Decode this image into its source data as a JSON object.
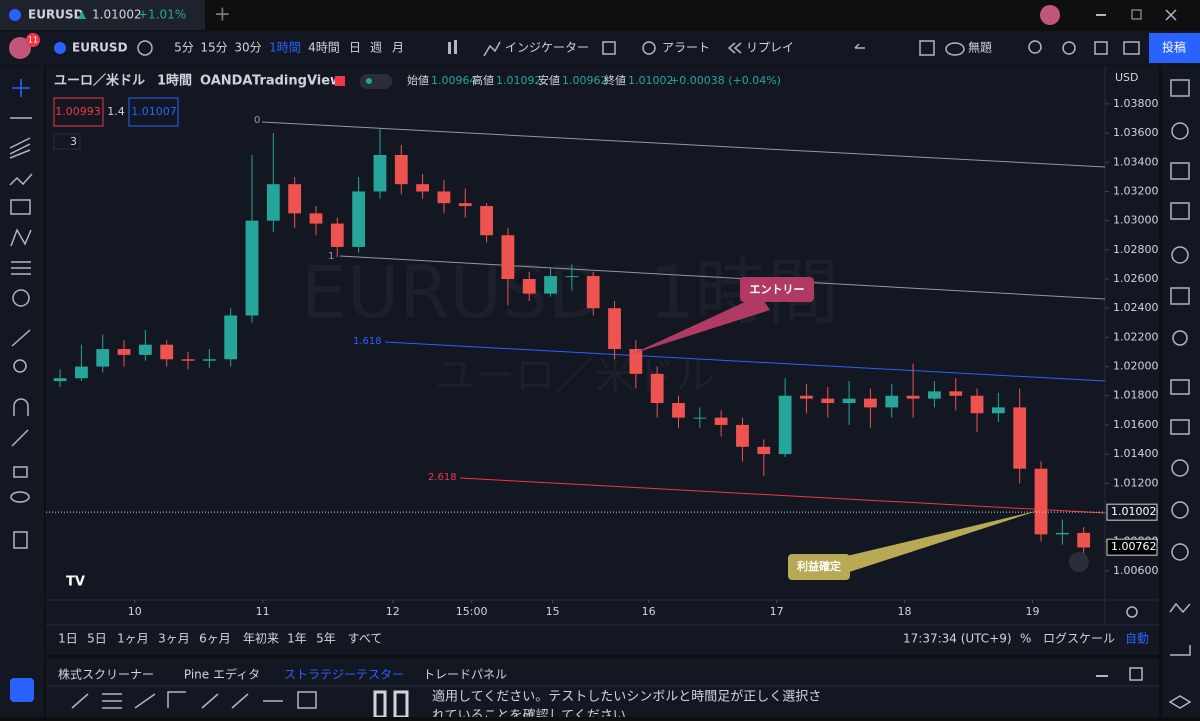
{
  "browser_tab": {
    "symbol": "EURUSD",
    "price": "1.01002",
    "change": "+1.01%"
  },
  "toolbar": {
    "avatar_badge": "11",
    "symbol": "EURUSD",
    "intervals": [
      "5分",
      "15分",
      "30分",
      "1時間",
      "4時間",
      "日",
      "週",
      "月"
    ],
    "indicators": "インジケーター",
    "alert": "アラート",
    "replay": "リプレイ",
    "layout": "無題",
    "publish": "投稿"
  },
  "legend": {
    "title": "ユーロ／米ドル",
    "interval": "1時間",
    "exchange": "OANDA",
    "source": "TradingView",
    "open_label": "始値",
    "open": "1.00964",
    "high_label": "高値",
    "high": "1.01092",
    "low_label": "安値",
    "low": "1.00962",
    "close_label": "終値",
    "close": "1.01002",
    "change": "+0.00038 (+0.04%)",
    "bid": "1.00993",
    "spread": "1.4",
    "ask": "1.01007",
    "indicators_count": "3"
  },
  "watermark": {
    "symbol": "EURUSD, 1時間",
    "name": "ユーロ／米ドル"
  },
  "annotations": {
    "entry": "エントリー",
    "take_profit": "利益確定",
    "fib_levels": [
      "0",
      "1",
      "1.618",
      "2.618"
    ]
  },
  "chart_data": {
    "type": "candlestick",
    "currency": "USD",
    "up_color": "#26a69a",
    "down_color": "#ef5350",
    "ohlc": [
      [
        1.019,
        1.0198,
        1.0186,
        1.0192
      ],
      [
        1.0192,
        1.0215,
        1.019,
        1.02
      ],
      [
        1.02,
        1.0222,
        1.0196,
        1.0212
      ],
      [
        1.0212,
        1.0218,
        1.02,
        1.0208
      ],
      [
        1.0208,
        1.0225,
        1.0204,
        1.0215
      ],
      [
        1.0215,
        1.0218,
        1.02,
        1.0205
      ],
      [
        1.0205,
        1.021,
        1.0198,
        1.0204
      ],
      [
        1.0204,
        1.0212,
        1.0199,
        1.0205
      ],
      [
        1.0205,
        1.024,
        1.02,
        1.0235
      ],
      [
        1.0235,
        1.0345,
        1.023,
        1.03
      ],
      [
        1.03,
        1.036,
        1.0292,
        1.0325
      ],
      [
        1.0325,
        1.033,
        1.0295,
        1.0305
      ],
      [
        1.0305,
        1.031,
        1.029,
        1.0298
      ],
      [
        1.0298,
        1.0302,
        1.0275,
        1.0282
      ],
      [
        1.0282,
        1.033,
        1.0278,
        1.032
      ],
      [
        1.032,
        1.0363,
        1.0315,
        1.0345
      ],
      [
        1.0345,
        1.0352,
        1.0318,
        1.0325
      ],
      [
        1.0325,
        1.0332,
        1.0315,
        1.032
      ],
      [
        1.032,
        1.0328,
        1.0305,
        1.0312
      ],
      [
        1.0312,
        1.0322,
        1.0302,
        1.031
      ],
      [
        1.031,
        1.0312,
        1.0285,
        1.029
      ],
      [
        1.029,
        1.0295,
        1.0242,
        1.026
      ],
      [
        1.026,
        1.0265,
        1.0245,
        1.025
      ],
      [
        1.025,
        1.0268,
        1.0248,
        1.0262
      ],
      [
        1.0262,
        1.027,
        1.0252,
        1.0262
      ],
      [
        1.0262,
        1.0265,
        1.0235,
        1.024
      ],
      [
        1.024,
        1.0245,
        1.0205,
        1.0212
      ],
      [
        1.0212,
        1.0218,
        1.0185,
        1.0195
      ],
      [
        1.0195,
        1.02,
        1.0165,
        1.0175
      ],
      [
        1.0175,
        1.018,
        1.0158,
        1.0165
      ],
      [
        1.0165,
        1.0172,
        1.0158,
        1.0165
      ],
      [
        1.0165,
        1.017,
        1.0152,
        1.016
      ],
      [
        1.016,
        1.0165,
        1.0135,
        1.0145
      ],
      [
        1.0145,
        1.015,
        1.0125,
        1.014
      ],
      [
        1.014,
        1.0192,
        1.0138,
        1.018
      ],
      [
        1.018,
        1.0188,
        1.0168,
        1.0178
      ],
      [
        1.0178,
        1.0186,
        1.0165,
        1.0175
      ],
      [
        1.0175,
        1.019,
        1.016,
        1.0178
      ],
      [
        1.0178,
        1.0185,
        1.0158,
        1.0172
      ],
      [
        1.0172,
        1.0188,
        1.0165,
        1.018
      ],
      [
        1.018,
        1.0202,
        1.0165,
        1.0178
      ],
      [
        1.0178,
        1.019,
        1.0172,
        1.0183
      ],
      [
        1.0183,
        1.0192,
        1.017,
        1.018
      ],
      [
        1.018,
        1.0185,
        1.0155,
        1.0168
      ],
      [
        1.0168,
        1.0182,
        1.0162,
        1.0172
      ],
      [
        1.0172,
        1.0185,
        1.012,
        1.013
      ],
      [
        1.013,
        1.0135,
        1.008,
        1.0085
      ],
      [
        1.0085,
        1.0095,
        1.0078,
        1.0086
      ],
      [
        1.0086,
        1.009,
        1.0072,
        1.0076
      ]
    ],
    "xlim": [
      -0.66,
      49
    ],
    "xticks": [
      {
        "value": 3.5,
        "label": "10"
      },
      {
        "value": 9.5,
        "label": "11"
      },
      {
        "value": 15.6,
        "label": "12"
      },
      {
        "value": 19.3,
        "label": "15:00"
      },
      {
        "value": 23.1,
        "label": "15"
      },
      {
        "value": 27.6,
        "label": "16"
      },
      {
        "value": 33.6,
        "label": "17"
      },
      {
        "value": 39.6,
        "label": "18"
      },
      {
        "value": 45.6,
        "label": "19"
      }
    ],
    "ylim": [
      1.004,
      1.0406
    ],
    "yticks": [
      {
        "value": 1.038,
        "label": "1.03800"
      },
      {
        "value": 1.036,
        "label": "1.03600"
      },
      {
        "value": 1.034,
        "label": "1.03400"
      },
      {
        "value": 1.032,
        "label": "1.03200"
      },
      {
        "value": 1.03,
        "label": "1.03000"
      },
      {
        "value": 1.028,
        "label": "1.02800"
      },
      {
        "value": 1.026,
        "label": "1.02600"
      },
      {
        "value": 1.024,
        "label": "1.02400"
      },
      {
        "value": 1.022,
        "label": "1.02200"
      },
      {
        "value": 1.02,
        "label": "1.02000"
      },
      {
        "value": 1.018,
        "label": "1.01800"
      },
      {
        "value": 1.016,
        "label": "1.01600"
      },
      {
        "value": 1.014,
        "label": "1.01400"
      },
      {
        "value": 1.012,
        "label": "1.01200"
      },
      {
        "value": 1.01,
        "label": "1.01000"
      },
      {
        "value": 1.008,
        "label": "1.00800"
      },
      {
        "value": 1.006,
        "label": "1.00600"
      }
    ],
    "price_labels": [
      {
        "value": 1.01002,
        "label": "1.01002"
      },
      {
        "value": 1.00762,
        "label": "1.00762"
      }
    ],
    "grid": false
  },
  "bottom_bar": {
    "ranges": [
      "1日",
      "5日",
      "1ヶ月",
      "3ヶ月",
      "6ヶ月",
      "年初来",
      "1年",
      "5年",
      "すべて"
    ],
    "clock": "17:37:34 (UTC+9)",
    "percent": "%",
    "log_scale": "ログスケール",
    "auto": "自動"
  },
  "panel": {
    "tabs": [
      "株式スクリーナー",
      "Pine エディタ",
      "ストラテジーテスター",
      "トレードパネル"
    ],
    "lines": [
      "適用してください。テストしたいシンボルと時間足が正しく選択さ",
      "れていることを確認してください"
    ]
  }
}
